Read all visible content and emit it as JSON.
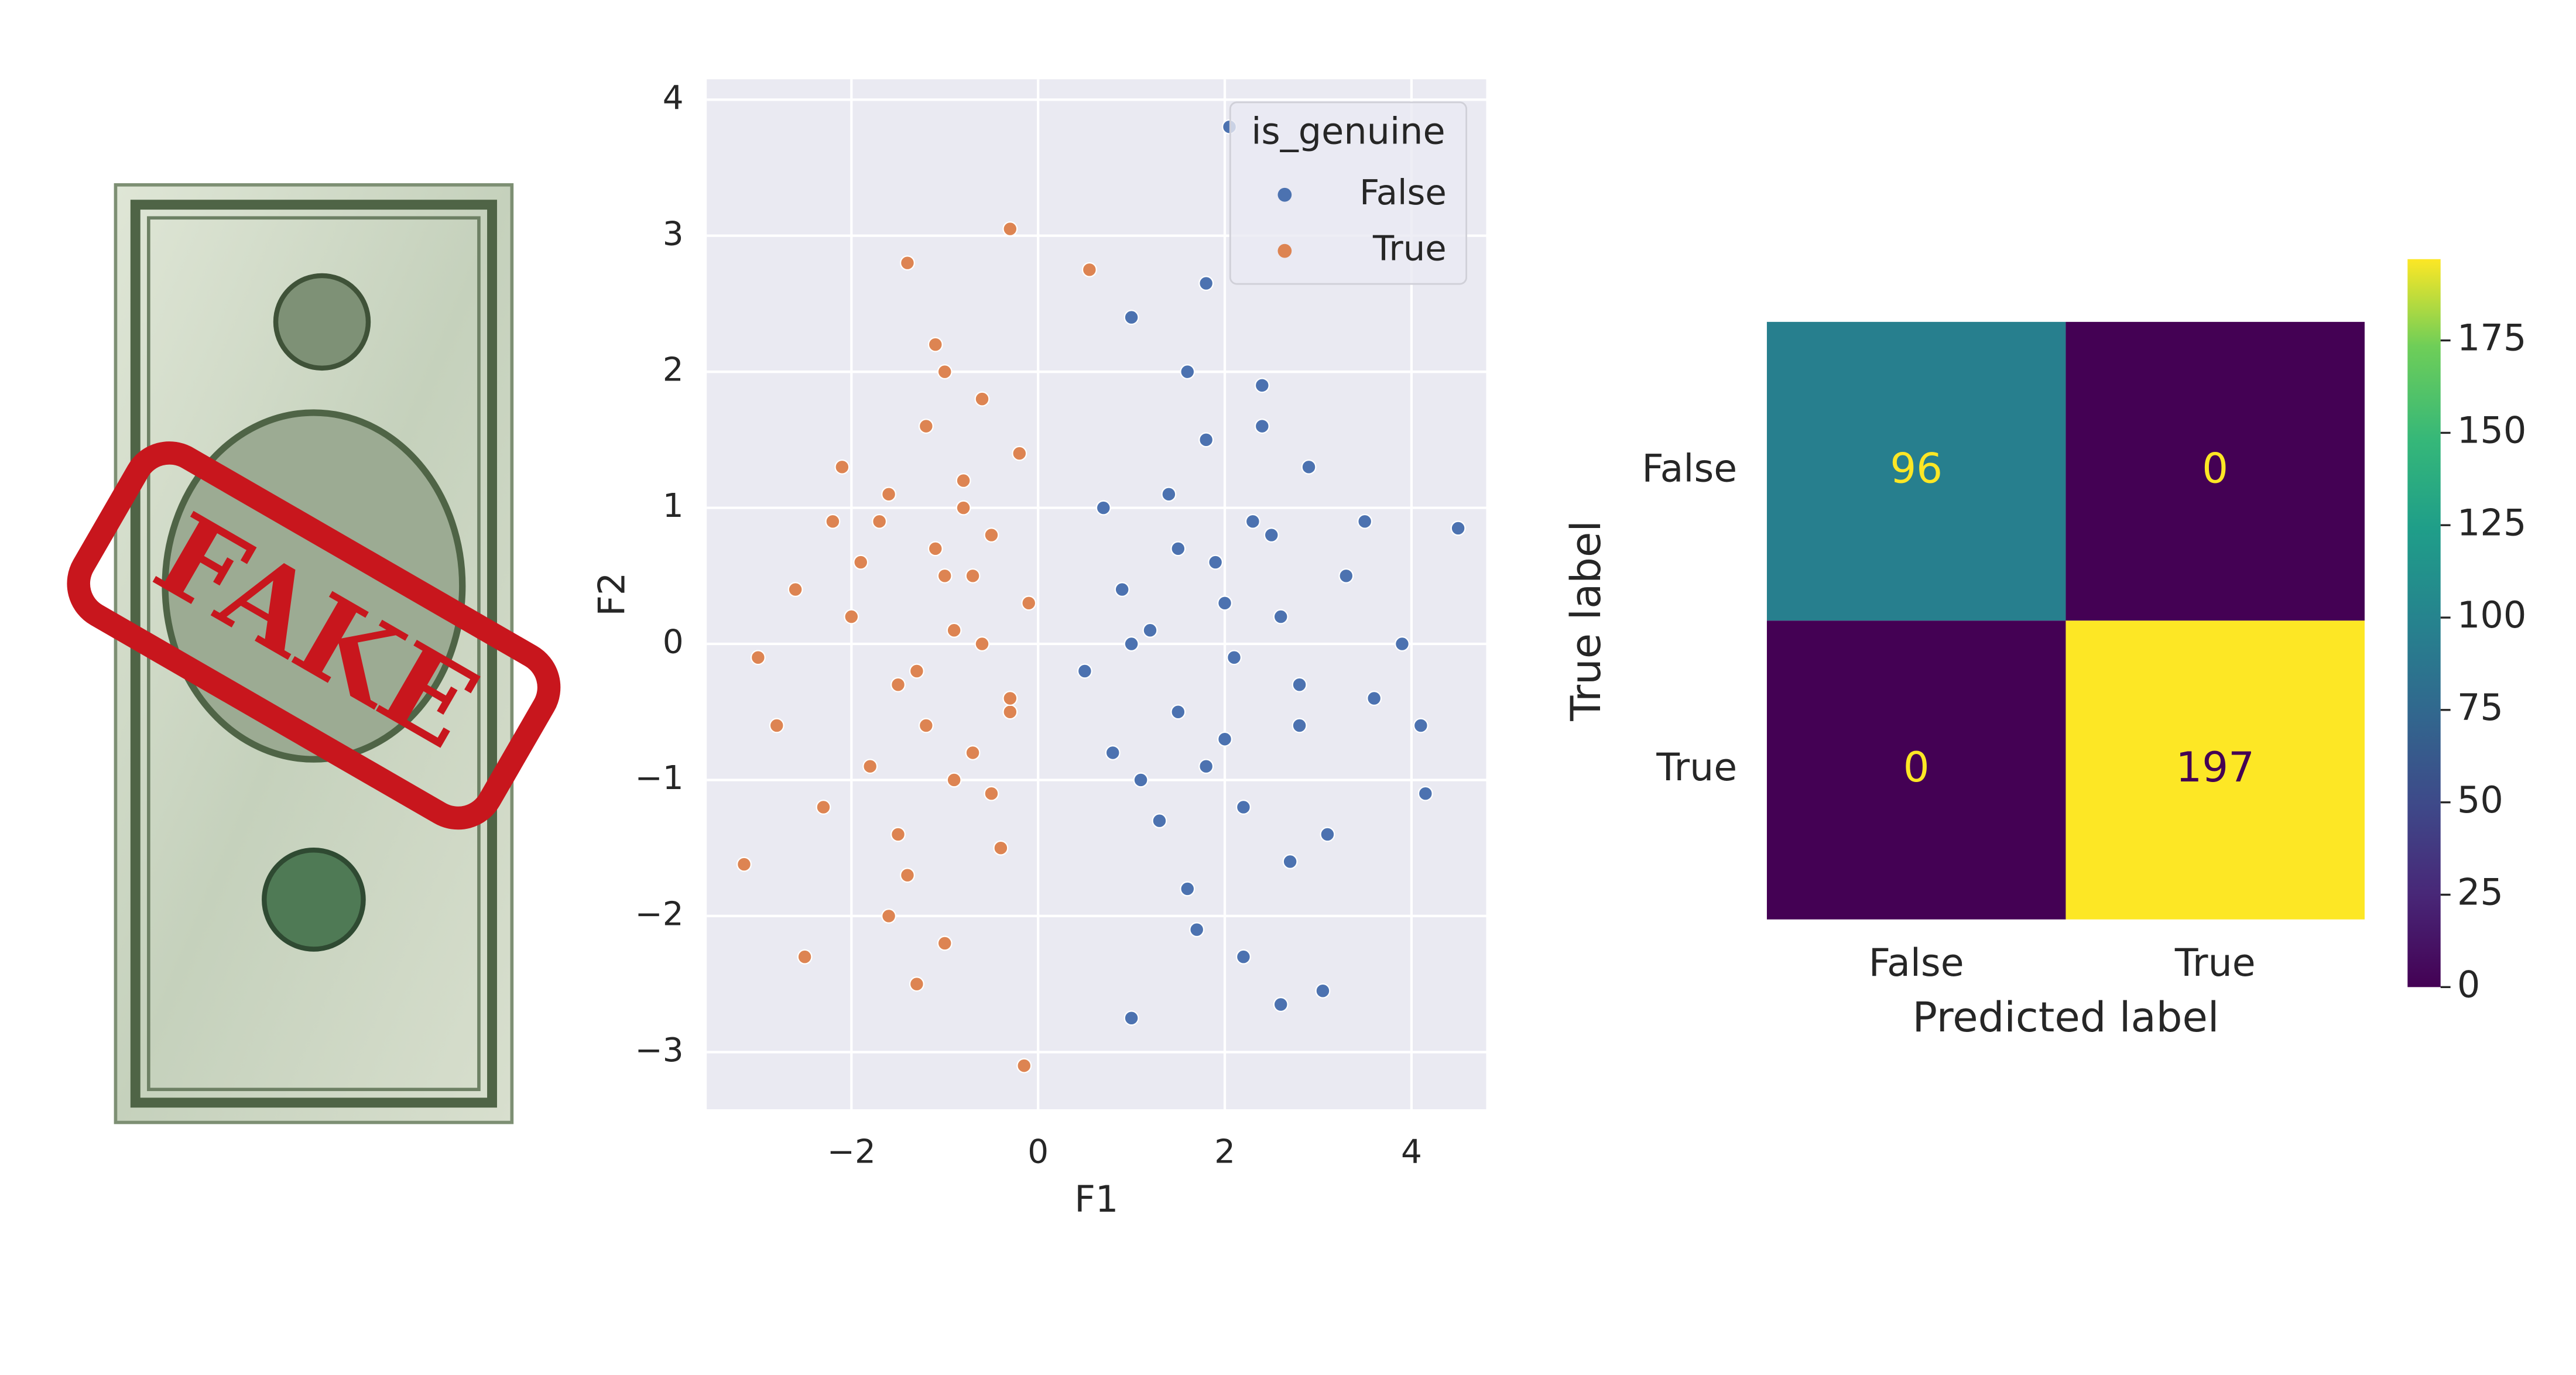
{
  "image": {
    "stamp": "FAKE"
  },
  "chart_data": [
    {
      "type": "scatter",
      "xlabel": "F1",
      "ylabel": "F2",
      "xlim": [
        -3.55,
        4.8
      ],
      "ylim": [
        -3.42,
        4.15
      ],
      "xticks": [
        {
          "value": -2,
          "label": "−2"
        },
        0,
        2,
        4
      ],
      "yticks": [
        {
          "value": -3,
          "label": "−3"
        },
        {
          "value": -2,
          "label": "−2"
        },
        {
          "value": -1,
          "label": "−1"
        },
        0,
        1,
        2,
        3,
        4
      ],
      "grid": true,
      "legend": "upper right",
      "legend_title": "is_genuine",
      "series": [
        {
          "name": "False",
          "color": "#4c72b0",
          "x": [
            2.05,
            1.0,
            1.8,
            4.5,
            1.0,
            2.6,
            3.05,
            4.15,
            4.1,
            2.0,
            1.5,
            2.5,
            1.8,
            2.2,
            1.2,
            2.8,
            3.3,
            0.8,
            1.6,
            2.4,
            2.1,
            1.9,
            3.6,
            0.5,
            1.4,
            2.7,
            3.9,
            1.1,
            2.3,
            1.7,
            2.9,
            0.9,
            2.0,
            3.1,
            1.3,
            2.6,
            1.5,
            2.2,
            0.7,
            3.5,
            1.8,
            2.4,
            1.0,
            2.8,
            1.6
          ],
          "values": [
            3.8,
            2.4,
            2.65,
            0.85,
            -2.75,
            -2.65,
            -2.55,
            -1.1,
            -0.6,
            0.3,
            -0.5,
            0.8,
            1.5,
            -1.2,
            0.1,
            -0.3,
            0.5,
            -0.8,
            -1.8,
            1.9,
            -0.1,
            0.6,
            -0.4,
            -0.2,
            1.1,
            -1.6,
            0.0,
            -1.0,
            0.9,
            -2.1,
            1.3,
            0.4,
            -0.7,
            -1.4,
            -1.3,
            0.2,
            0.7,
            -2.3,
            1.0,
            0.9,
            -0.9,
            1.6,
            0.0,
            -0.6,
            2.0
          ]
        },
        {
          "name": "True",
          "color": "#dd8452",
          "x": [
            -3.15,
            -0.15,
            -0.3,
            -1.4,
            0.55,
            -2.5,
            -1.3,
            -3.0,
            -1.0,
            -0.8,
            -1.5,
            -0.5,
            -1.2,
            -2.0,
            -0.9,
            -1.7,
            -0.3,
            -1.1,
            -2.3,
            -0.6,
            -1.4,
            -0.2,
            -1.9,
            -0.7,
            -1.0,
            -2.6,
            -0.4,
            -1.3,
            -0.8,
            -1.6,
            -0.1,
            -2.1,
            -1.2,
            -0.5,
            -1.8,
            -0.9,
            -2.8,
            -0.6,
            -1.5,
            -1.1,
            -0.3,
            -2.2,
            -1.0,
            -0.7,
            -1.6
          ],
          "values": [
            -1.62,
            -3.1,
            3.05,
            2.8,
            2.75,
            -2.3,
            -2.5,
            -0.1,
            0.5,
            1.2,
            -0.3,
            0.8,
            1.6,
            0.2,
            -1.0,
            0.9,
            -0.5,
            2.2,
            -1.2,
            0.0,
            -1.7,
            1.4,
            0.6,
            -0.8,
            2.0,
            0.4,
            -1.5,
            -0.2,
            1.0,
            -2.0,
            0.3,
            1.3,
            -0.6,
            -1.1,
            -0.9,
            0.1,
            -0.6,
            1.8,
            -1.4,
            0.7,
            -0.4,
            0.9,
            -2.2,
            0.5,
            1.1
          ]
        }
      ]
    },
    {
      "type": "heatmap",
      "xlabel": "Predicted label",
      "ylabel": "True label",
      "x_categories": [
        "False",
        "True"
      ],
      "y_categories": [
        "False",
        "True"
      ],
      "values": [
        [
          96,
          0
        ],
        [
          0,
          197
        ]
      ],
      "colormap": "viridis",
      "clim": [
        0,
        197
      ],
      "cticks": [
        0,
        25,
        50,
        75,
        100,
        125,
        150,
        175
      ]
    }
  ]
}
